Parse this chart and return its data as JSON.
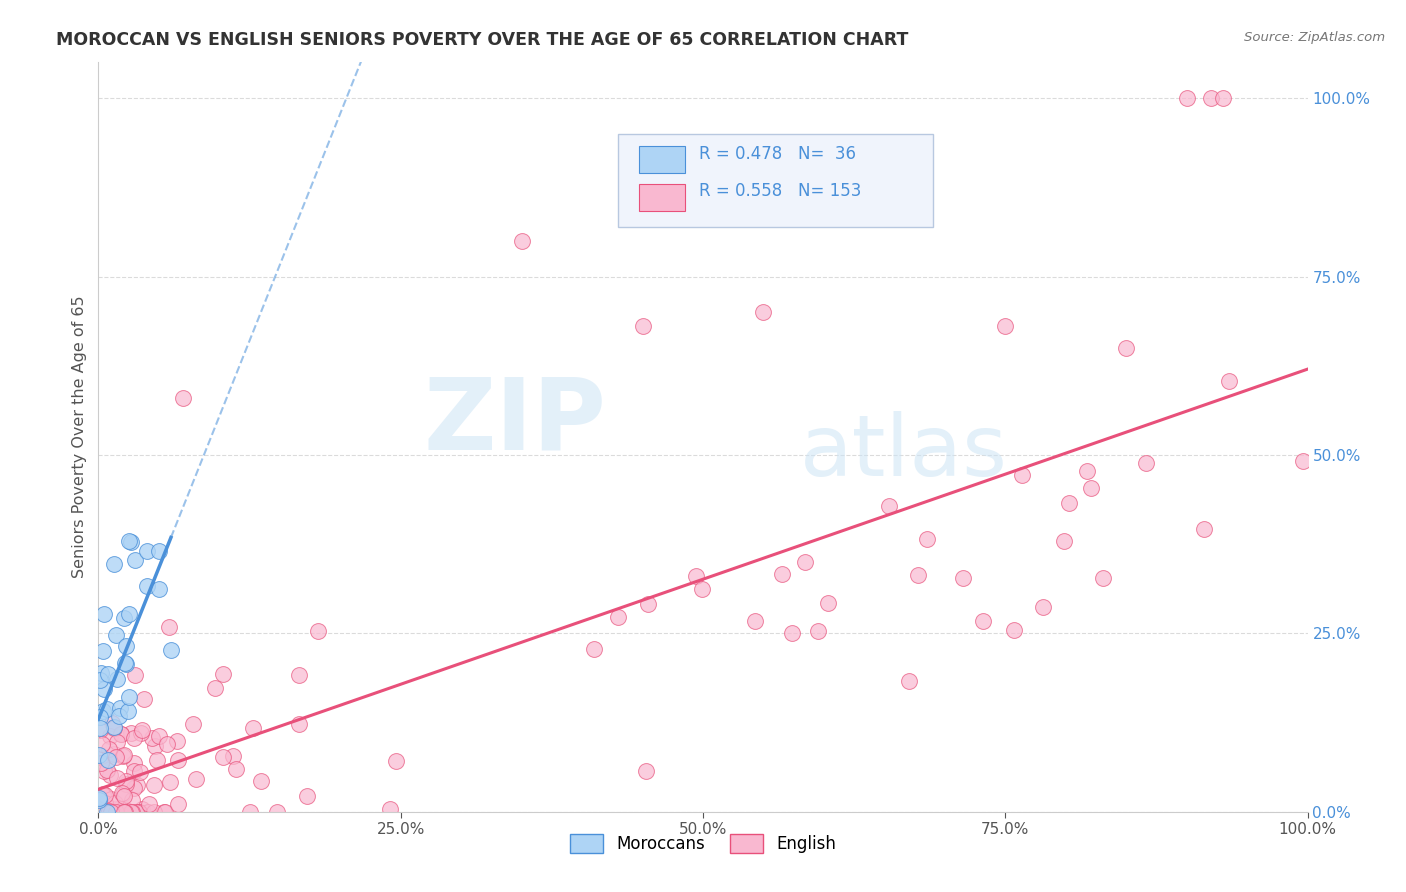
{
  "title": "MOROCCAN VS ENGLISH SENIORS POVERTY OVER THE AGE OF 65 CORRELATION CHART",
  "source": "Source: ZipAtlas.com",
  "ylabel": "Seniors Poverty Over the Age of 65",
  "moroccan_R": 0.478,
  "moroccan_N": 36,
  "english_R": 0.558,
  "english_N": 153,
  "moroccan_color": "#aed4f5",
  "english_color": "#f9b8d0",
  "moroccan_line_color": "#4a90d9",
  "english_line_color": "#e8507a",
  "background_color": "#ffffff",
  "grid_color": "#cccccc",
  "title_color": "#333333",
  "right_axis_color": "#4a90d9",
  "watermark_color": "#d0e8f8",
  "watermark_zip": "ZIP",
  "watermark_atlas": "atlas",
  "legend_box_color": "#e8eef8",
  "legend_border_color": "#b0c8e8"
}
